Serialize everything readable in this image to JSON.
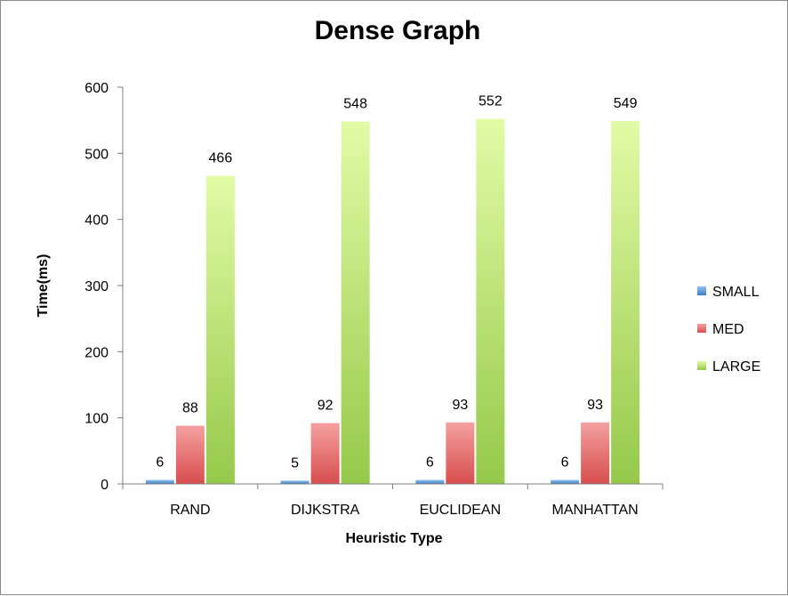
{
  "chart_data": {
    "type": "bar",
    "title": "Dense Graph",
    "xlabel": "Heuristic Type",
    "ylabel": "Time(ms)",
    "categories": [
      "RAND",
      "DIJKSTRA",
      "EUCLIDEAN",
      "MANHATTAN"
    ],
    "series": [
      {
        "name": "SMALL",
        "values": [
          6,
          5,
          6,
          6
        ],
        "color": "#5b9bd5"
      },
      {
        "name": "MED",
        "values": [
          88,
          92,
          93,
          93
        ],
        "color": "#e46464"
      },
      {
        "name": "LARGE",
        "values": [
          466,
          548,
          552,
          549
        ],
        "color": "#a8d75a"
      }
    ],
    "ylim": [
      0,
      600
    ],
    "yticks": [
      0,
      100,
      200,
      300,
      400,
      500,
      600
    ],
    "grid": false,
    "legend_position": "right"
  }
}
